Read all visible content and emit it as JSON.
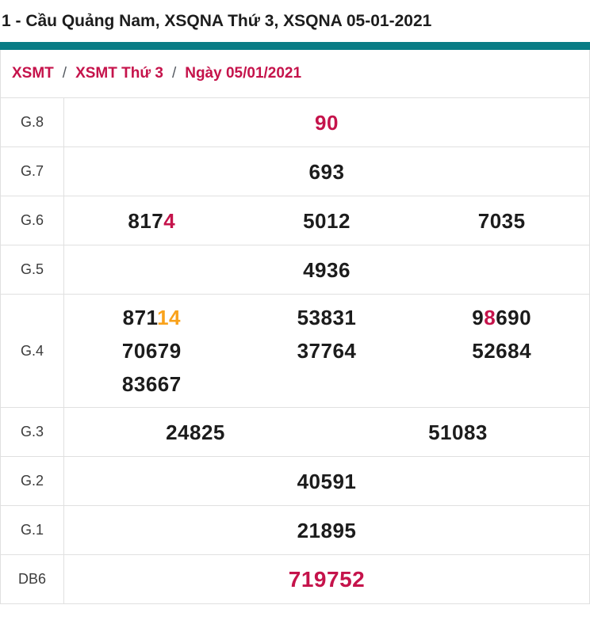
{
  "page_title": "1 - Cầu Quảng Nam, XSQNA Thứ 3, XSQNA 05-01-2021",
  "breadcrumb": {
    "separator": "/",
    "items": [
      "XSMT",
      "XSMT Thứ 3",
      "Ngày 05/01/2021"
    ]
  },
  "colors": {
    "accent_teal": "#097c85",
    "highlight_crimson": "#c5134b",
    "highlight_orange": "#f9a21b",
    "border_gray": "#e0e0e0"
  },
  "results_table": {
    "rows": [
      {
        "label": "G.8",
        "cols": 1,
        "cells": [
          [
            {
              "text": "90",
              "color": "crimson"
            }
          ]
        ]
      },
      {
        "label": "G.7",
        "cols": 1,
        "cells": [
          [
            {
              "text": "693"
            }
          ]
        ]
      },
      {
        "label": "G.6",
        "cols": 3,
        "cells": [
          [
            {
              "text": "817"
            },
            {
              "text": "4",
              "color": "crimson"
            }
          ],
          [
            {
              "text": "5012"
            }
          ],
          [
            {
              "text": "7035"
            }
          ]
        ]
      },
      {
        "label": "G.5",
        "cols": 1,
        "cells": [
          [
            {
              "text": "4936"
            }
          ]
        ]
      },
      {
        "label": "G.4",
        "cols": 3,
        "cells": [
          [
            {
              "text": "871"
            },
            {
              "text": "14",
              "color": "orange"
            }
          ],
          [
            {
              "text": "53831"
            }
          ],
          [
            {
              "text": "9"
            },
            {
              "text": "8",
              "color": "crimson"
            },
            {
              "text": "690"
            }
          ],
          [
            {
              "text": "70679"
            }
          ],
          [
            {
              "text": "37764"
            }
          ],
          [
            {
              "text": "52684"
            }
          ],
          [
            {
              "text": "83667"
            }
          ]
        ]
      },
      {
        "label": "G.3",
        "cols": 2,
        "cells": [
          [
            {
              "text": "24825"
            }
          ],
          [
            {
              "text": "51083"
            }
          ]
        ]
      },
      {
        "label": "G.2",
        "cols": 1,
        "cells": [
          [
            {
              "text": "40591"
            }
          ]
        ]
      },
      {
        "label": "G.1",
        "cols": 1,
        "cells": [
          [
            {
              "text": "21895"
            }
          ]
        ]
      },
      {
        "label": "DB6",
        "cols": 1,
        "big": true,
        "cells": [
          [
            {
              "text": "719752",
              "color": "crimson"
            }
          ]
        ]
      }
    ]
  }
}
